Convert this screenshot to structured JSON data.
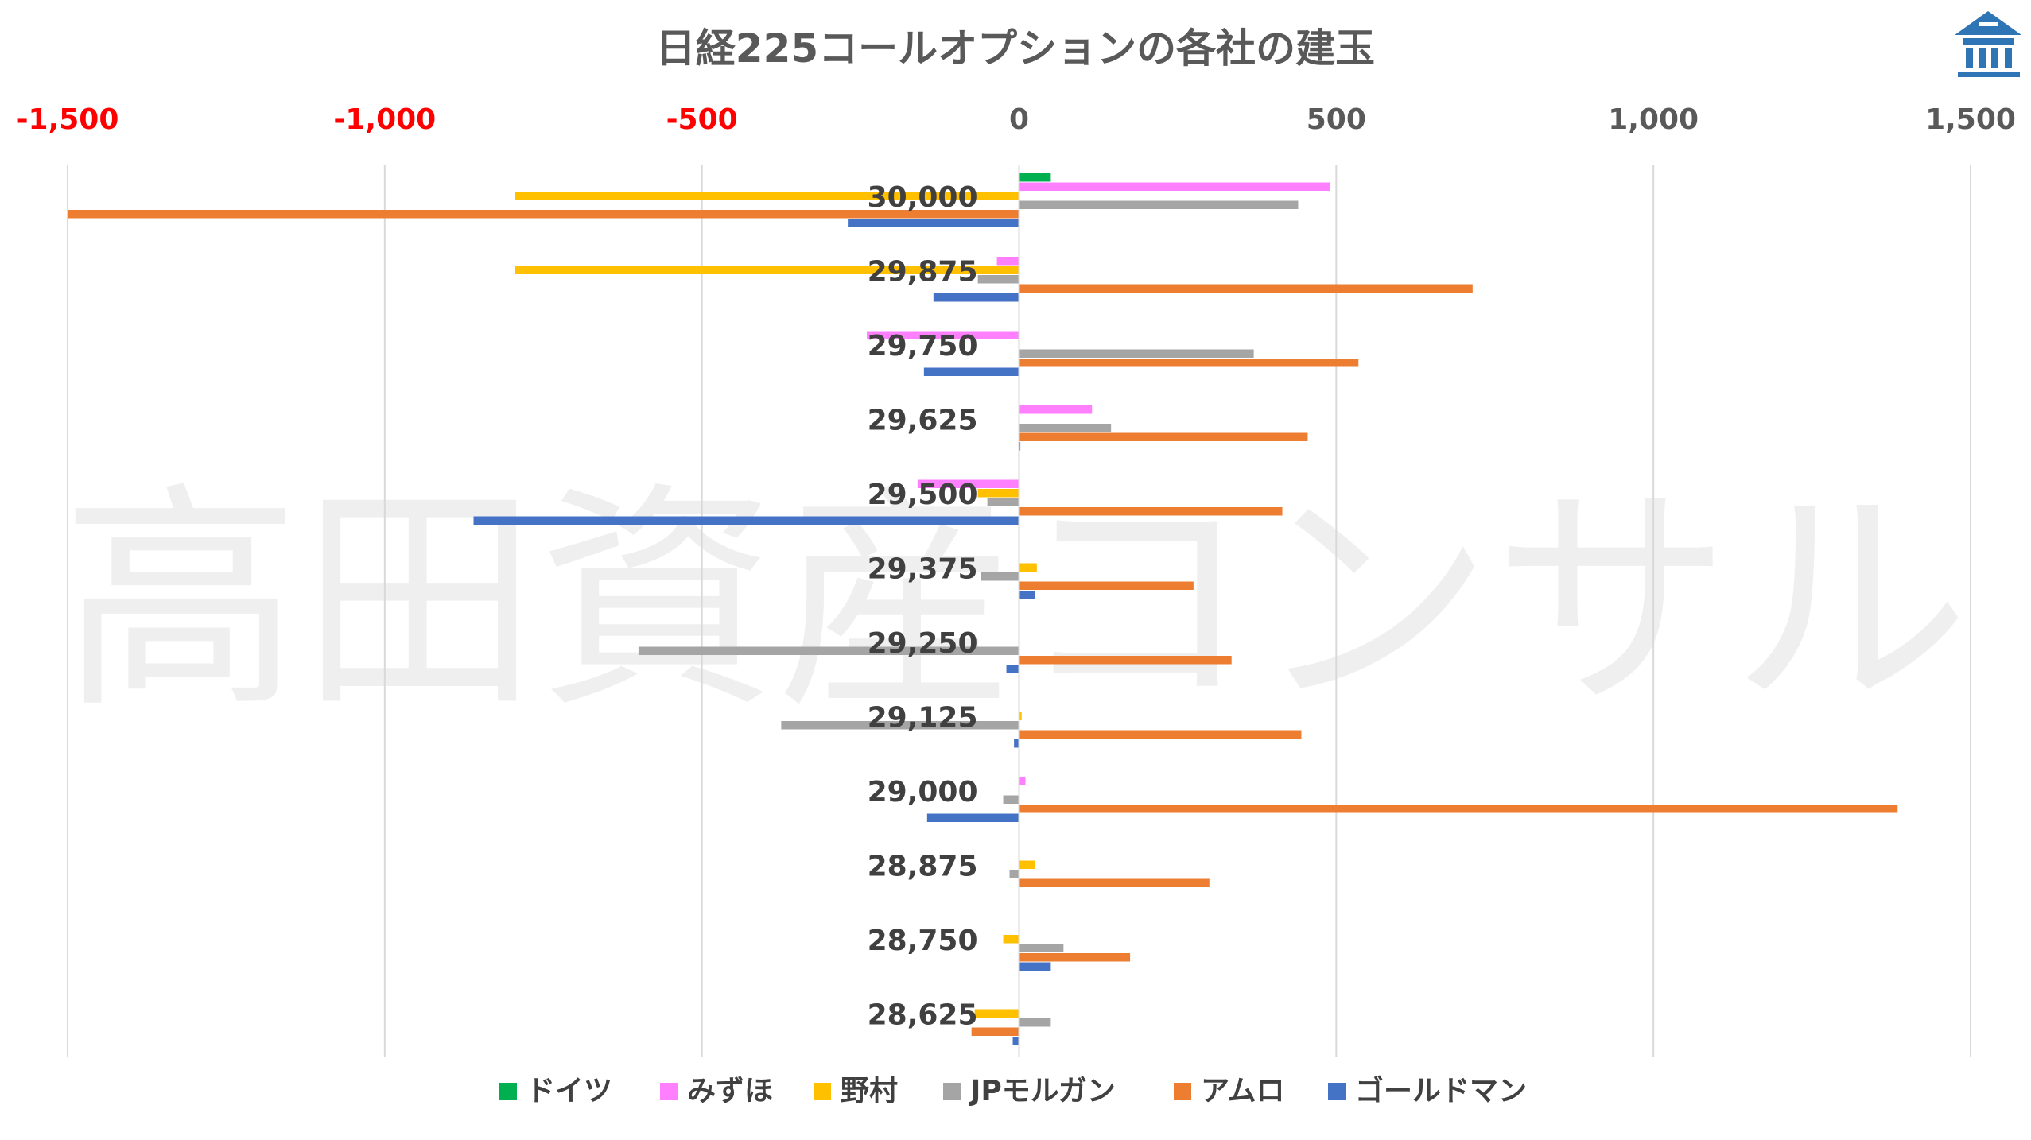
{
  "chart_data": {
    "type": "bar",
    "orientation": "horizontal",
    "title": "日経225コールオプションの各社の建玉",
    "xlim": [
      -1500,
      1500
    ],
    "xticks": [
      -1500,
      -1000,
      -500,
      0,
      500,
      1000,
      1500
    ],
    "xtick_labels": [
      "-1,500",
      "-1,000",
      "-500",
      "0",
      "500",
      "1,000",
      "1,500"
    ],
    "axis_position": "top",
    "grid": true,
    "legend_position": "bottom",
    "categories": [
      "30,000",
      "29,875",
      "29,750",
      "29,625",
      "29,500",
      "29,375",
      "29,250",
      "29,125",
      "29,000",
      "28,875",
      "28,750",
      "28,625"
    ],
    "series": [
      {
        "name": "ドイツ",
        "color": "#00B050",
        "values": [
          50,
          0,
          0,
          0,
          0,
          0,
          0,
          0,
          0,
          0,
          0,
          0
        ]
      },
      {
        "name": "みずほ",
        "color": "#FF80FF",
        "values": [
          490,
          -35,
          -240,
          115,
          -160,
          0,
          0,
          0,
          10,
          0,
          0,
          0
        ]
      },
      {
        "name": "野村",
        "color": "#FFC000",
        "values": [
          -795,
          -795,
          0,
          0,
          -65,
          28,
          0,
          4,
          0,
          25,
          -25,
          -70
        ]
      },
      {
        "name": "JPモルガン",
        "color": "#A5A5A5",
        "values": [
          440,
          -65,
          370,
          145,
          -50,
          -60,
          -600,
          -375,
          -25,
          -15,
          70,
          50
        ]
      },
      {
        "name": "アムロ",
        "color": "#ED7D31",
        "values": [
          -1500,
          715,
          535,
          455,
          415,
          275,
          335,
          445,
          1385,
          300,
          175,
          -75
        ]
      },
      {
        "name": "ゴールドマン",
        "color": "#4472C4",
        "values": [
          -270,
          -135,
          -150,
          2,
          -860,
          25,
          -20,
          -8,
          -145,
          0,
          50,
          -10
        ]
      }
    ],
    "negative_tick_color": "#FF0000",
    "positive_tick_color": "#595959"
  },
  "watermark": "高田資産コンサル",
  "logo": {
    "icon": "bank-building-icon",
    "color": "#2E75B6"
  }
}
